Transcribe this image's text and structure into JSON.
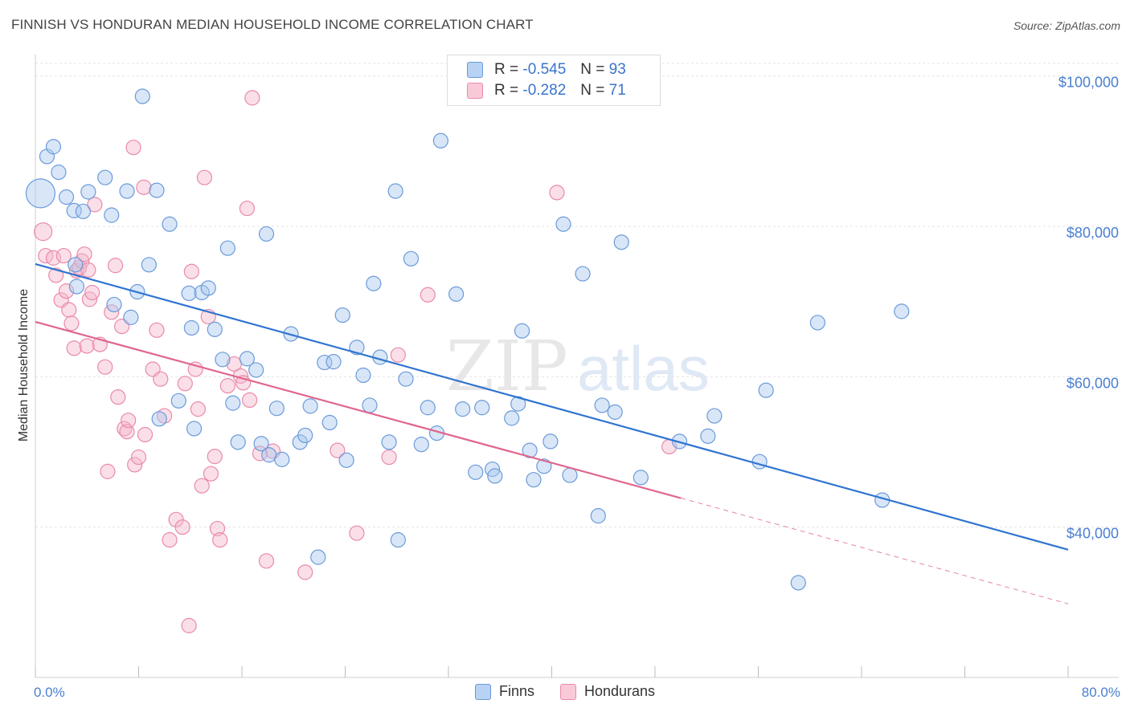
{
  "header": {
    "title": "FINNISH VS HONDURAN MEDIAN HOUSEHOLD INCOME CORRELATION CHART",
    "source": "Source: ZipAtlas.com"
  },
  "watermark": {
    "zip": "ZIP",
    "atlas": "atlas"
  },
  "legend_top": {
    "rows": [
      {
        "r_label": "R =",
        "r_value": "-0.545",
        "n_label": "N =",
        "n_value": "93"
      },
      {
        "r_label": "R =",
        "r_value": "-0.282",
        "n_label": "N =",
        "n_value": "71"
      }
    ]
  },
  "legend_bottom": {
    "finns": "Finns",
    "hondurans": "Hondurans"
  },
  "colors": {
    "finns_fill": "#a9c8ef",
    "finns_stroke": "#6b9bd9",
    "finns_line": "#2f74d0",
    "hondurans_fill": "#f5b8cc",
    "hondurans_stroke": "#e98aa9",
    "hondurans_line": "#e0668e",
    "tick_label": "#4a7fd0"
  },
  "chart_data": {
    "type": "scatter",
    "title": "FINNISH VS HONDURAN MEDIAN HOUSEHOLD INCOME CORRELATION CHART",
    "xlabel": "",
    "ylabel": "Median Household Income",
    "x_tick_labels": [
      "0.0%",
      "80.0%"
    ],
    "y_tick_labels": [
      "$40,000",
      "$60,000",
      "$80,000",
      "$100,000"
    ],
    "y_ticks": [
      40000,
      60000,
      80000,
      100000
    ],
    "xlim": [
      0,
      80
    ],
    "ylim": [
      20000,
      102000
    ],
    "grid": true,
    "legend_position": "top-center",
    "series": [
      {
        "name": "Finns",
        "r": -0.545,
        "n": 93,
        "trend": {
          "x0": 0.0,
          "y0": 75000,
          "x1": 80.0,
          "y1": 37000,
          "solid_to": 80.0
        },
        "points": [
          [
            0.4,
            84400
          ],
          [
            0.9,
            89300
          ],
          [
            1.4,
            90600
          ],
          [
            1.8,
            87200
          ],
          [
            2.4,
            83900
          ],
          [
            3.0,
            82100
          ],
          [
            3.1,
            74900
          ],
          [
            3.2,
            72000
          ],
          [
            3.7,
            82000
          ],
          [
            4.1,
            84600
          ],
          [
            5.4,
            86500
          ],
          [
            5.9,
            81500
          ],
          [
            6.1,
            69600
          ],
          [
            7.1,
            84700
          ],
          [
            7.4,
            67900
          ],
          [
            7.9,
            71300
          ],
          [
            8.3,
            97300
          ],
          [
            8.8,
            74900
          ],
          [
            9.4,
            84800
          ],
          [
            9.6,
            54400
          ],
          [
            10.4,
            80300
          ],
          [
            11.1,
            56800
          ],
          [
            11.9,
            71100
          ],
          [
            12.1,
            66500
          ],
          [
            12.3,
            53100
          ],
          [
            12.9,
            71200
          ],
          [
            13.4,
            71800
          ],
          [
            13.9,
            66300
          ],
          [
            14.5,
            62300
          ],
          [
            14.9,
            77100
          ],
          [
            15.3,
            56500
          ],
          [
            15.7,
            51300
          ],
          [
            16.4,
            62400
          ],
          [
            17.1,
            60900
          ],
          [
            17.5,
            51100
          ],
          [
            17.9,
            79000
          ],
          [
            18.1,
            49600
          ],
          [
            18.7,
            55800
          ],
          [
            19.1,
            49000
          ],
          [
            19.8,
            65700
          ],
          [
            20.5,
            51300
          ],
          [
            20.9,
            52200
          ],
          [
            21.3,
            56100
          ],
          [
            21.9,
            36000
          ],
          [
            22.4,
            61900
          ],
          [
            22.8,
            53900
          ],
          [
            23.1,
            62000
          ],
          [
            23.8,
            68200
          ],
          [
            24.1,
            48900
          ],
          [
            24.9,
            63900
          ],
          [
            25.4,
            60200
          ],
          [
            25.9,
            56200
          ],
          [
            26.2,
            72400
          ],
          [
            26.7,
            62600
          ],
          [
            27.4,
            51300
          ],
          [
            27.9,
            84700
          ],
          [
            28.1,
            38300
          ],
          [
            28.7,
            59700
          ],
          [
            29.1,
            75700
          ],
          [
            29.9,
            51000
          ],
          [
            30.4,
            55900
          ],
          [
            31.1,
            52500
          ],
          [
            31.4,
            91400
          ],
          [
            32.6,
            71000
          ],
          [
            33.1,
            55700
          ],
          [
            34.1,
            47300
          ],
          [
            34.6,
            55900
          ],
          [
            35.4,
            47700
          ],
          [
            35.6,
            46800
          ],
          [
            36.9,
            54500
          ],
          [
            37.4,
            56400
          ],
          [
            37.7,
            66100
          ],
          [
            38.3,
            50200
          ],
          [
            38.6,
            46300
          ],
          [
            39.4,
            48100
          ],
          [
            39.9,
            51400
          ],
          [
            40.9,
            80300
          ],
          [
            41.4,
            46900
          ],
          [
            42.4,
            73700
          ],
          [
            43.6,
            41500
          ],
          [
            43.9,
            56200
          ],
          [
            44.9,
            55300
          ],
          [
            45.4,
            77900
          ],
          [
            46.9,
            46600
          ],
          [
            49.9,
            51400
          ],
          [
            52.1,
            52100
          ],
          [
            52.6,
            54800
          ],
          [
            56.1,
            48700
          ],
          [
            56.6,
            58200
          ],
          [
            59.1,
            32600
          ],
          [
            60.6,
            67200
          ],
          [
            65.6,
            43600
          ],
          [
            67.1,
            68700
          ]
        ]
      },
      {
        "name": "Hondurans",
        "r": -0.282,
        "n": 71,
        "trend": {
          "x0": 0.0,
          "y0": 67300,
          "x1": 80.0,
          "y1": 29800,
          "solid_to": 50.0
        },
        "points": [
          [
            0.6,
            79300
          ],
          [
            0.8,
            76100
          ],
          [
            1.4,
            75800
          ],
          [
            1.6,
            73500
          ],
          [
            2.0,
            70200
          ],
          [
            2.2,
            76100
          ],
          [
            2.4,
            71400
          ],
          [
            2.6,
            68900
          ],
          [
            2.8,
            67100
          ],
          [
            3.0,
            63800
          ],
          [
            3.2,
            74100
          ],
          [
            3.4,
            74500
          ],
          [
            3.6,
            75400
          ],
          [
            3.8,
            76300
          ],
          [
            4.0,
            64100
          ],
          [
            4.2,
            70300
          ],
          [
            4.4,
            71200
          ],
          [
            4.6,
            82900
          ],
          [
            5.0,
            64300
          ],
          [
            5.4,
            61300
          ],
          [
            5.6,
            47400
          ],
          [
            5.9,
            68600
          ],
          [
            6.2,
            74800
          ],
          [
            6.4,
            57300
          ],
          [
            6.7,
            66700
          ],
          [
            6.9,
            53100
          ],
          [
            7.1,
            52700
          ],
          [
            7.2,
            54200
          ],
          [
            7.6,
            90500
          ],
          [
            7.7,
            48300
          ],
          [
            8.0,
            49300
          ],
          [
            8.4,
            85200
          ],
          [
            8.5,
            52300
          ],
          [
            9.1,
            61000
          ],
          [
            9.4,
            66200
          ],
          [
            9.7,
            59700
          ],
          [
            10.0,
            54800
          ],
          [
            10.4,
            38300
          ],
          [
            10.9,
            41000
          ],
          [
            11.4,
            40000
          ],
          [
            11.6,
            59100
          ],
          [
            11.9,
            26900
          ],
          [
            12.1,
            74000
          ],
          [
            12.4,
            61000
          ],
          [
            12.6,
            55700
          ],
          [
            12.9,
            45500
          ],
          [
            13.1,
            86500
          ],
          [
            13.4,
            68000
          ],
          [
            13.6,
            47100
          ],
          [
            13.9,
            49400
          ],
          [
            14.1,
            39800
          ],
          [
            14.3,
            38300
          ],
          [
            14.9,
            58800
          ],
          [
            15.4,
            61700
          ],
          [
            15.9,
            60100
          ],
          [
            16.1,
            59200
          ],
          [
            16.4,
            82400
          ],
          [
            16.6,
            56900
          ],
          [
            16.8,
            97100
          ],
          [
            17.4,
            49800
          ],
          [
            17.9,
            35500
          ],
          [
            18.4,
            50100
          ],
          [
            20.9,
            34000
          ],
          [
            23.4,
            50200
          ],
          [
            24.9,
            39200
          ],
          [
            27.4,
            49300
          ],
          [
            28.1,
            62900
          ],
          [
            30.4,
            70900
          ],
          [
            40.4,
            84500
          ],
          [
            49.1,
            50700
          ],
          [
            4.1,
            74200
          ]
        ]
      }
    ]
  }
}
